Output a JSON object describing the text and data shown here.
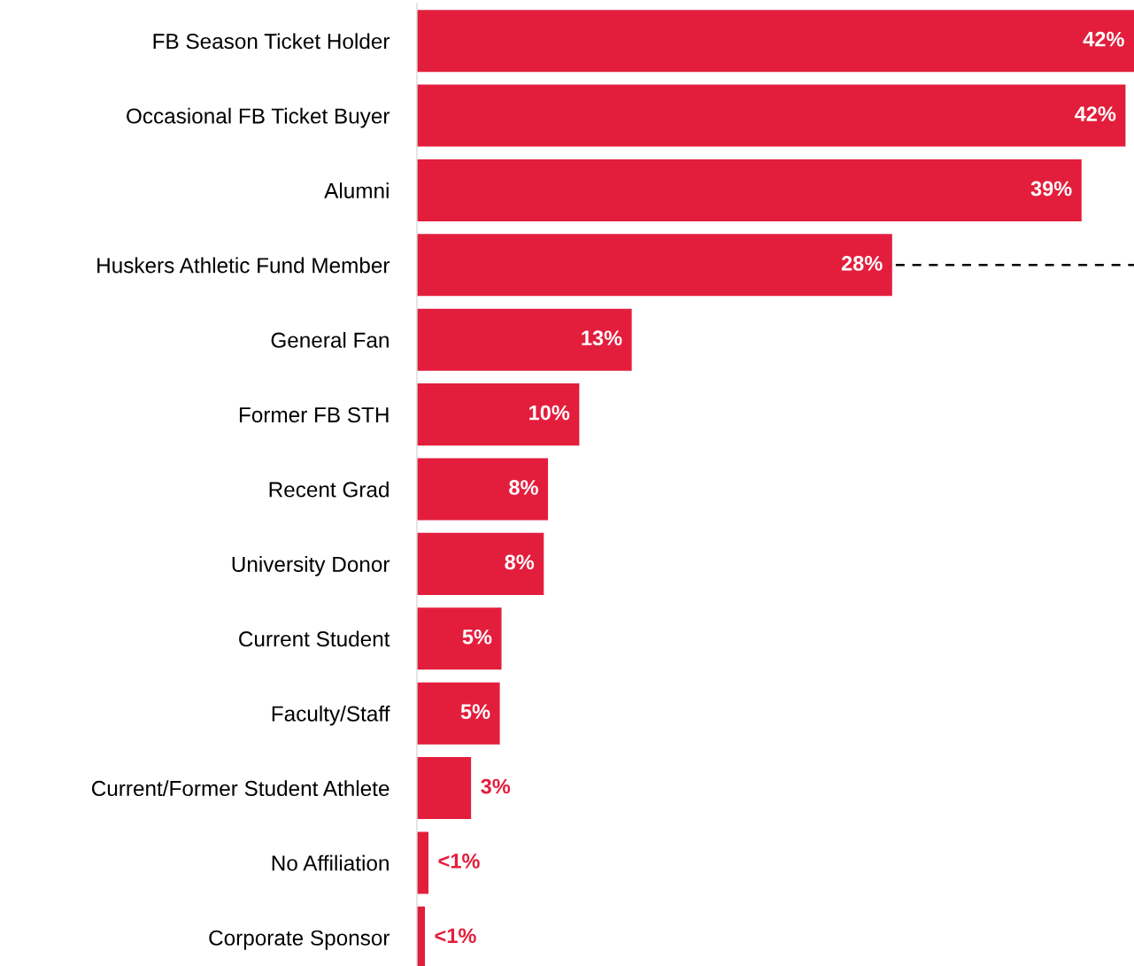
{
  "chart_data": {
    "type": "bar",
    "orientation": "horizontal",
    "categories": [
      "FB Season Ticket Holder",
      "Occasional FB Ticket Buyer",
      "Alumni",
      "Huskers Athletic Fund Member",
      "General Fan",
      "Former FB STH",
      "Recent Grad",
      "University Donor",
      "Current Student",
      "Faculty/Staff",
      "Current/Former Student Athlete",
      "No Affiliation",
      "Corporate Sponsor"
    ],
    "values": [
      42.4,
      41.9,
      39.3,
      28.1,
      12.7,
      9.6,
      7.75,
      7.5,
      5.0,
      4.9,
      3.2,
      0.68,
      0.47
    ],
    "value_labels": [
      "42%",
      "42%",
      "39%",
      "28%",
      "13%",
      "10%",
      "8%",
      "8%",
      "5%",
      "5%",
      "3%",
      "<1%",
      "<1%"
    ],
    "color": "#e31e3c",
    "xlim": [
      0,
      42.4
    ],
    "tick_labels": "y",
    "grid": false,
    "legend": false
  }
}
